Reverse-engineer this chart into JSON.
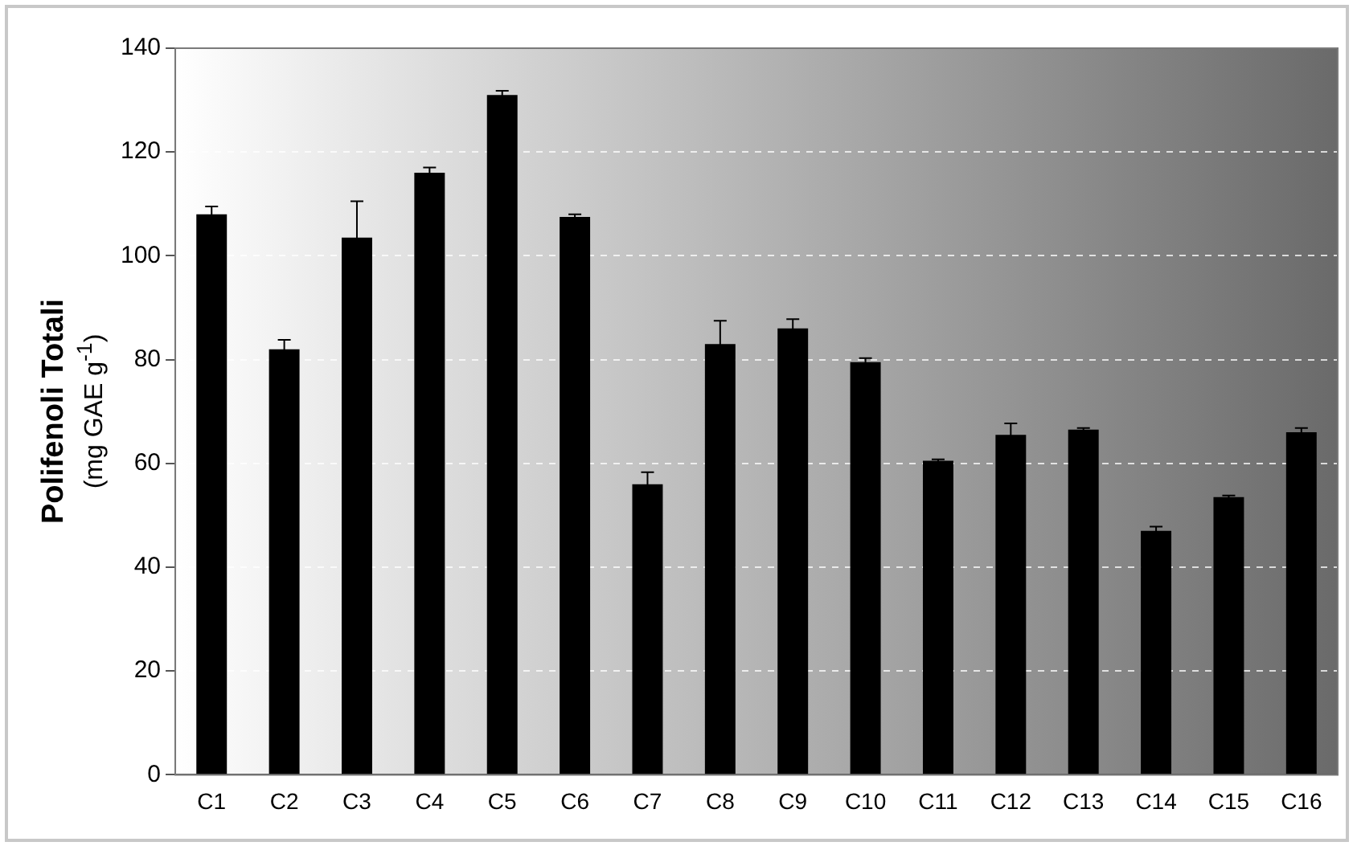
{
  "chart_data": {
    "type": "bar",
    "ylabel": "Polifenoli Totali\n(mg GAE g$^{-1}$)",
    "categories": [
      "C1",
      "C2",
      "C3",
      "C4",
      "C5",
      "C6",
      "C7",
      "C8",
      "C9",
      "C10",
      "C11",
      "C12",
      "C13",
      "C14",
      "C15",
      "C16"
    ],
    "values": [
      108,
      82,
      103.5,
      116,
      131,
      107.5,
      56,
      83,
      86,
      79.5,
      60.5,
      65.5,
      66.5,
      47,
      53.5,
      66
    ],
    "errors": [
      1.5,
      1.8,
      7,
      1,
      0.8,
      0.5,
      2.3,
      4.5,
      1.8,
      0.8,
      0.3,
      2.2,
      0.3,
      0.8,
      0.3,
      0.8
    ],
    "color": "#000000",
    "ylim": [
      0,
      140
    ],
    "yticks": [
      0,
      20,
      40,
      60,
      80,
      100,
      120,
      140
    ],
    "grid": "y"
  }
}
